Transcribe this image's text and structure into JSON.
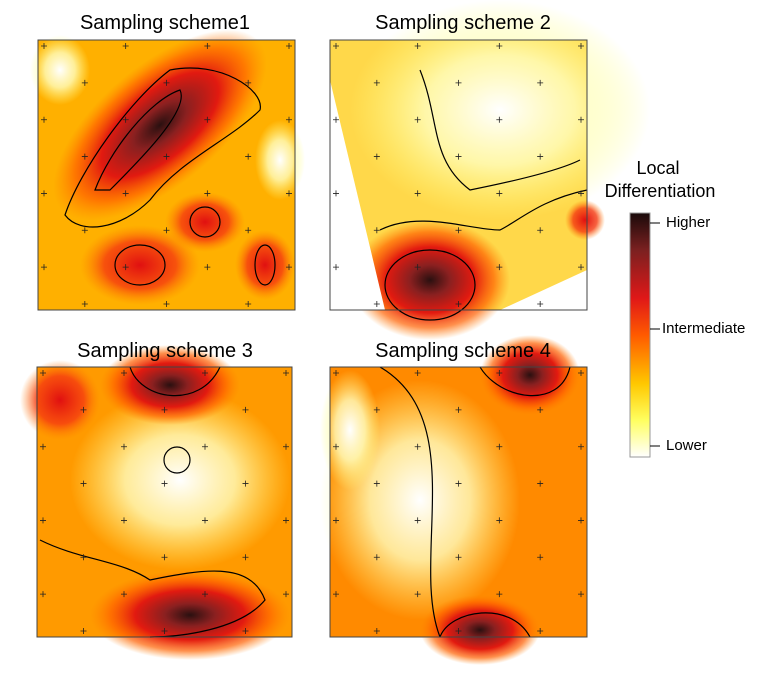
{
  "panels": [
    {
      "title": "Sampling scheme1"
    },
    {
      "title": "Sampling scheme 2"
    },
    {
      "title": "Sampling scheme 3"
    },
    {
      "title": "Sampling scheme 4"
    }
  ],
  "legend": {
    "title_lines": [
      "Local",
      "Differentiation"
    ],
    "labels": [
      "Higher",
      "Intermediate",
      "Lower"
    ]
  }
}
